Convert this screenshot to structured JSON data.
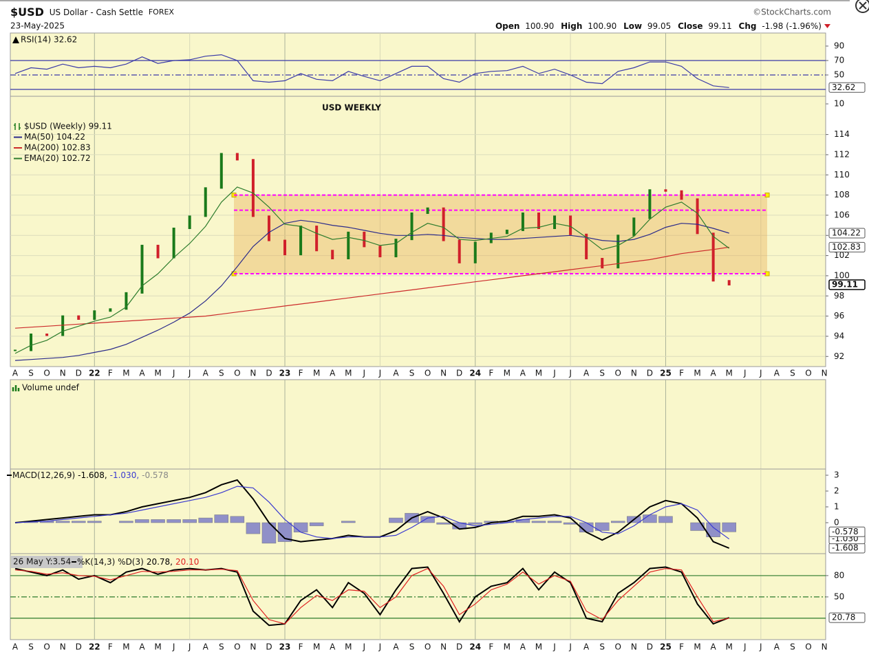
{
  "header": {
    "symbol": "$USD",
    "name": "US Dollar - Cash Settle",
    "exchange": "FOREX",
    "date": "23-May-2025",
    "source": "©StockCharts.com",
    "open_label": "Open",
    "open": "100.90",
    "high_label": "High",
    "high": "100.90",
    "low_label": "Low",
    "low": "99.05",
    "close_label": "Close",
    "close": "99.11",
    "chg_label": "Chg",
    "chg": "-1.98 (-1.96%)"
  },
  "chart_data": [
    {
      "type": "line",
      "series": [
        {
          "name": "RSI(14) 32.62",
          "color": "#3a3aa8",
          "last": 32.62,
          "values": [
            52,
            60,
            58,
            65,
            60,
            62,
            60,
            65,
            75,
            66,
            70,
            71,
            76,
            78,
            70,
            42,
            40,
            42,
            52,
            44,
            42,
            55,
            48,
            42,
            52,
            62,
            62,
            45,
            40,
            52,
            55,
            56,
            62,
            52,
            58,
            50,
            40,
            38,
            55,
            60,
            68,
            68,
            62,
            45,
            35,
            32.62,
            null,
            null,
            null,
            null,
            null,
            null
          ]
        }
      ],
      "ylim": [
        20.5,
        101.4
      ],
      "yticks": [
        90,
        70,
        50,
        10
      ],
      "hlines": [
        {
          "value": 70,
          "color": "#3a3aa8"
        },
        {
          "value": 50,
          "color": "#3a3aa8",
          "dash": true
        },
        {
          "value": 30,
          "color": "#3a3aa8"
        }
      ]
    },
    {
      "type": "price",
      "title": "USD WEEKLY",
      "grid": true,
      "categories": [
        "A",
        "S",
        "O",
        "N",
        "D",
        "22",
        "F",
        "M",
        "A",
        "M",
        "J",
        "J",
        "A",
        "S",
        "O",
        "N",
        "D",
        "23",
        "F",
        "M",
        "A",
        "M",
        "J",
        "J",
        "A",
        "S",
        "O",
        "N",
        "D",
        "24",
        "F",
        "M",
        "A",
        "M",
        "J",
        "J",
        "A",
        "S",
        "O",
        "N",
        "D",
        "25",
        "F",
        "M",
        "A",
        "M",
        "J",
        "J",
        "A",
        "S",
        "O",
        "N"
      ],
      "series": [
        {
          "name": "$USD (Weekly) 99.11",
          "style": "bars",
          "color": "#1a7a1a",
          "down_color": "#d0202a",
          "last": 99.11,
          "values": [
            92.6,
            94.2,
            94.1,
            96.0,
            95.7,
            96.5,
            96.7,
            98.3,
            103.0,
            101.8,
            104.7,
            105.9,
            108.7,
            112.1,
            111.5,
            105.9,
            103.5,
            102.1,
            104.9,
            102.5,
            101.7,
            104.3,
            102.9,
            101.9,
            103.6,
            106.2,
            106.7,
            103.5,
            101.3,
            103.3,
            104.2,
            104.5,
            106.2,
            104.7,
            105.9,
            104.1,
            101.7,
            100.8,
            104.0,
            105.7,
            108.5,
            108.4,
            107.6,
            104.2,
            99.5,
            99.11,
            null,
            null,
            null,
            null,
            null,
            null
          ]
        },
        {
          "name": "MA(50) 104.22",
          "color": "#2a2a8a",
          "last": 104.22,
          "values": [
            91.6,
            91.7,
            91.8,
            91.9,
            92.1,
            92.4,
            92.7,
            93.2,
            93.9,
            94.6,
            95.4,
            96.3,
            97.5,
            99.0,
            100.9,
            102.9,
            104.3,
            105.2,
            105.5,
            105.3,
            105.0,
            104.8,
            104.5,
            104.2,
            104.0,
            104.0,
            104.1,
            104.0,
            103.8,
            103.7,
            103.6,
            103.6,
            103.7,
            103.8,
            103.9,
            104.0,
            103.8,
            103.5,
            103.4,
            103.6,
            104.1,
            104.8,
            105.2,
            105.1,
            104.7,
            104.22,
            null,
            null,
            null,
            null,
            null,
            null
          ]
        },
        {
          "name": "MA(200) 102.83",
          "color": "#cc2a2a",
          "last": 102.83,
          "values": [
            94.8,
            94.9,
            95.0,
            95.1,
            95.2,
            95.3,
            95.4,
            95.5,
            95.6,
            95.7,
            95.8,
            95.9,
            96.0,
            96.2,
            96.4,
            96.6,
            96.8,
            97.0,
            97.2,
            97.4,
            97.6,
            97.8,
            98.0,
            98.2,
            98.4,
            98.6,
            98.8,
            99.0,
            99.2,
            99.4,
            99.6,
            99.8,
            100.0,
            100.2,
            100.4,
            100.6,
            100.8,
            101.0,
            101.2,
            101.4,
            101.6,
            101.9,
            102.2,
            102.4,
            102.6,
            102.83,
            null,
            null,
            null,
            null,
            null,
            null
          ]
        },
        {
          "name": "EMA(20) 102.72",
          "color": "#2e7d2e",
          "values": [
            92.3,
            93.1,
            93.6,
            94.5,
            95.0,
            95.5,
            95.9,
            96.9,
            99.0,
            100.2,
            101.8,
            103.2,
            104.9,
            107.3,
            108.8,
            108.2,
            106.8,
            105.1,
            104.9,
            104.2,
            103.6,
            103.8,
            103.5,
            103.0,
            103.2,
            104.3,
            105.2,
            104.8,
            103.6,
            103.5,
            103.7,
            103.9,
            104.7,
            104.8,
            105.2,
            104.9,
            103.8,
            102.6,
            103.0,
            103.9,
            105.6,
            106.8,
            107.3,
            106.2,
            103.9,
            102.72,
            null,
            null,
            null,
            null,
            null,
            null
          ]
        }
      ],
      "ylim": [
        91.2,
        115.2
      ],
      "yticks": [
        92,
        94,
        96,
        98,
        100,
        102,
        104,
        106,
        108,
        110,
        112,
        114
      ],
      "range_box": {
        "low": 100.2,
        "high": 108
      },
      "hlines": [
        {
          "value": 108,
          "color": "#ff00ff",
          "dash": true
        },
        {
          "value": 106.5,
          "color": "#ff00ff",
          "dash": true
        },
        {
          "value": 100.2,
          "color": "#ff00ff",
          "dash": true
        }
      ]
    },
    {
      "type": "volume",
      "title": "Volume undef"
    },
    {
      "type": "macd",
      "title": "MACD(12,26,9)",
      "legend_inline": true,
      "series": [
        {
          "legend": "-1.608,",
          "color": "#000000",
          "width": 2,
          "last": -1.608,
          "values": [
            0.0,
            0.1,
            0.2,
            0.3,
            0.4,
            0.5,
            0.5,
            0.7,
            1.0,
            1.2,
            1.4,
            1.6,
            1.9,
            2.4,
            2.7,
            1.5,
            0.0,
            -1.0,
            -1.2,
            -1.1,
            -1.0,
            -0.8,
            -0.9,
            -0.9,
            -0.5,
            0.3,
            0.7,
            0.3,
            -0.4,
            -0.3,
            0.0,
            0.1,
            0.4,
            0.4,
            0.5,
            0.3,
            -0.6,
            -1.1,
            -0.6,
            0.2,
            1.0,
            1.4,
            1.2,
            0.3,
            -1.2,
            -1.608,
            null,
            null,
            null,
            null,
            null,
            null
          ]
        },
        {
          "legend": "-1.030,",
          "color": "#3a3ad0",
          "last": {
            "value": -1.03,
            "label": "-1.030"
          },
          "values": [
            0.0,
            0.05,
            0.1,
            0.2,
            0.3,
            0.4,
            0.5,
            0.6,
            0.8,
            1.0,
            1.2,
            1.4,
            1.6,
            1.9,
            2.3,
            2.2,
            1.3,
            0.2,
            -0.6,
            -0.9,
            -1.0,
            -0.9,
            -0.9,
            -0.9,
            -0.8,
            -0.3,
            0.3,
            0.4,
            0.0,
            -0.2,
            -0.1,
            0.0,
            0.2,
            0.3,
            0.4,
            0.4,
            0.0,
            -0.6,
            -0.7,
            -0.2,
            0.5,
            1.0,
            1.2,
            0.8,
            -0.3,
            -1.03,
            null,
            null,
            null,
            null,
            null,
            null
          ]
        },
        {
          "legend": "-0.578",
          "style": "histogram",
          "color": "#9090c8",
          "legend_color": "#888888",
          "last": -0.578,
          "values": [
            0,
            0.05,
            0.1,
            0.1,
            0.1,
            0.1,
            0,
            0.1,
            0.2,
            0.2,
            0.2,
            0.2,
            0.3,
            0.5,
            0.4,
            -0.7,
            -1.3,
            -1.2,
            -0.6,
            -0.2,
            0,
            0.1,
            0,
            0,
            0.3,
            0.6,
            0.4,
            -0.1,
            -0.4,
            -0.1,
            0.1,
            0.1,
            0.2,
            0.1,
            0.1,
            -0.1,
            -0.6,
            -0.5,
            0.1,
            0.4,
            0.5,
            0.4,
            0,
            -0.5,
            -0.9,
            -0.578,
            null,
            null,
            null,
            null,
            null,
            null
          ]
        }
      ],
      "ylim": [
        -1.74,
        3.26
      ],
      "yticks": [
        3,
        2,
        1,
        0
      ]
    },
    {
      "type": "line",
      "title": "%K(14,3) %D(3)",
      "legend_inline": true,
      "tooltip": "26 May Y:3.54",
      "categories": [
        "A",
        "S",
        "O",
        "N",
        "D",
        "22",
        "F",
        "M",
        "A",
        "M",
        "J",
        "J",
        "A",
        "S",
        "O",
        "N",
        "D",
        "23",
        "F",
        "M",
        "A",
        "M",
        "J",
        "J",
        "A",
        "S",
        "O",
        "N",
        "D",
        "24",
        "F",
        "M",
        "A",
        "M",
        "J",
        "J",
        "A",
        "S",
        "O",
        "N",
        "D",
        "25",
        "F",
        "M",
        "A",
        "M",
        "J",
        "J",
        "A",
        "S",
        "O",
        "N"
      ],
      "series": [
        {
          "legend": "20.78,",
          "color": "#000000",
          "width": 2,
          "last": 20.78,
          "values": [
            90,
            85,
            80,
            88,
            75,
            80,
            70,
            85,
            90,
            82,
            88,
            90,
            88,
            90,
            85,
            30,
            10,
            12,
            45,
            60,
            35,
            70,
            55,
            25,
            60,
            90,
            92,
            55,
            15,
            50,
            65,
            70,
            90,
            60,
            85,
            70,
            20,
            15,
            55,
            70,
            90,
            92,
            85,
            40,
            12,
            20.78,
            null,
            null,
            null,
            null,
            null,
            null
          ]
        },
        {
          "legend": "20.10",
          "color": "#e02020",
          "values": [
            88,
            86,
            82,
            84,
            80,
            79,
            74,
            80,
            86,
            85,
            86,
            88,
            88,
            89,
            87,
            45,
            18,
            12,
            35,
            52,
            45,
            60,
            58,
            35,
            50,
            80,
            90,
            65,
            25,
            40,
            60,
            68,
            85,
            68,
            80,
            72,
            30,
            18,
            45,
            65,
            85,
            90,
            88,
            50,
            15,
            20.1,
            null,
            null,
            null,
            null,
            null,
            null
          ]
        }
      ],
      "ylim": [
        -8.2,
        108
      ],
      "yticks": [
        80,
        50
      ],
      "hlines": [
        {
          "value": 80,
          "color": "#2a7a2a"
        },
        {
          "value": 50,
          "color": "#2a7a2a",
          "dash": true
        },
        {
          "value": 20,
          "color": "#2a7a2a"
        }
      ]
    }
  ]
}
